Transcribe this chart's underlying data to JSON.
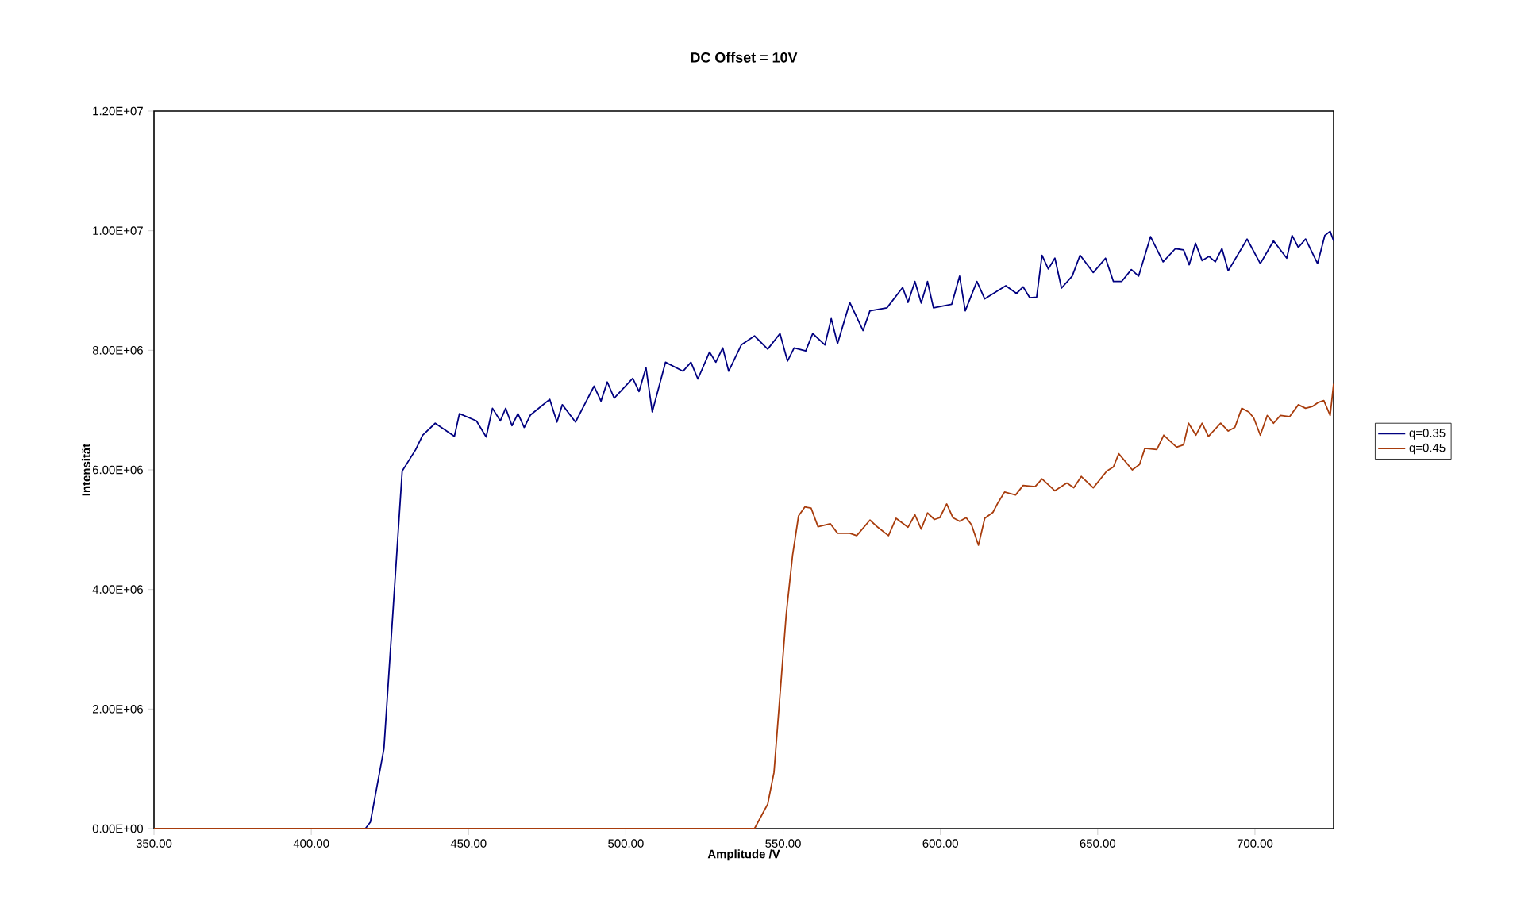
{
  "chart_data": {
    "type": "line",
    "title": "DC Offset = 10V",
    "xlabel": "Amplitude /V",
    "ylabel": "Intensität",
    "xlim": [
      350,
      725
    ],
    "ylim": [
      0,
      12000000
    ],
    "xticks": [
      {
        "value": 350,
        "label": "350.00"
      },
      {
        "value": 400,
        "label": "400.00"
      },
      {
        "value": 450,
        "label": "450.00"
      },
      {
        "value": 500,
        "label": "500.00"
      },
      {
        "value": 550,
        "label": "550.00"
      },
      {
        "value": 600,
        "label": "600.00"
      },
      {
        "value": 650,
        "label": "650.00"
      },
      {
        "value": 700,
        "label": "700.00"
      }
    ],
    "yticks": [
      {
        "value": 0,
        "label": "0.00E+00"
      },
      {
        "value": 2000000,
        "label": "2.00E+06"
      },
      {
        "value": 4000000,
        "label": "4.00E+06"
      },
      {
        "value": 6000000,
        "label": "6.00E+06"
      },
      {
        "value": 8000000,
        "label": "8.00E+06"
      },
      {
        "value": 10000000,
        "label": "1.00E+07"
      },
      {
        "value": 12000000,
        "label": "1.20E+07"
      }
    ],
    "grid": false,
    "legend": "right",
    "marker": "none",
    "line_style": "solid",
    "series": [
      {
        "name": "q=0.35",
        "color": "#000080",
        "x": [
          350,
          417.2,
          418.8,
          423.1,
          428.9,
          433.2,
          435.4,
          439.4,
          445.5,
          447.1,
          452.5,
          455.6,
          457.6,
          460.1,
          461.8,
          463.8,
          465.7,
          467.7,
          469.7,
          475.8,
          478.1,
          479.8,
          484.0,
          489.9,
          492.1,
          494.1,
          496.3,
          502.2,
          504.2,
          506.4,
          508.4,
          512.6,
          518.2,
          520.7,
          522.9,
          526.6,
          528.6,
          530.8,
          532.7,
          536.7,
          540.9,
          545.1,
          549.0,
          551.4,
          553.5,
          557.2,
          559.4,
          563.3,
          565.3,
          567.3,
          571.2,
          575.4,
          577.6,
          583.0,
          588.0,
          589.7,
          591.9,
          593.9,
          595.9,
          597.8,
          603.6,
          606.1,
          607.9,
          611.6,
          614.1,
          620.8,
          624.2,
          626.3,
          628.4,
          630.6,
          632.3,
          634.3,
          636.4,
          638.5,
          641.9,
          644.4,
          648.6,
          652.5,
          655.0,
          657.6,
          660.7,
          663.0,
          666.8,
          670.8,
          674.7,
          677.3,
          679.1,
          681.1,
          683.2,
          685.4,
          687.4,
          689.5,
          691.5,
          697.5,
          701.7,
          705.9,
          710.1,
          711.8,
          713.8,
          716.1,
          719.9,
          722.2,
          723.9,
          725
        ],
        "values": [
          0,
          0,
          110000,
          1340000,
          5980000,
          6340000,
          6580000,
          6780000,
          6560000,
          6940000,
          6820000,
          6550000,
          7030000,
          6820000,
          7030000,
          6740000,
          6940000,
          6710000,
          6920000,
          7180000,
          6800000,
          7090000,
          6800000,
          7400000,
          7150000,
          7470000,
          7200000,
          7530000,
          7310000,
          7710000,
          6970000,
          7800000,
          7650000,
          7800000,
          7520000,
          7970000,
          7800000,
          8040000,
          7650000,
          8090000,
          8240000,
          8020000,
          8280000,
          7820000,
          8040000,
          7990000,
          8280000,
          8090000,
          8530000,
          8110000,
          8800000,
          8330000,
          8660000,
          8710000,
          9050000,
          8800000,
          9150000,
          8790000,
          9150000,
          8710000,
          8770000,
          9240000,
          8660000,
          9150000,
          8860000,
          9080000,
          8950000,
          9060000,
          8880000,
          8890000,
          9590000,
          9360000,
          9540000,
          9040000,
          9240000,
          9590000,
          9300000,
          9540000,
          9150000,
          9150000,
          9350000,
          9240000,
          9900000,
          9480000,
          9700000,
          9680000,
          9430000,
          9790000,
          9500000,
          9570000,
          9480000,
          9700000,
          9330000,
          9860000,
          9450000,
          9830000,
          9540000,
          9920000,
          9720000,
          9860000,
          9450000,
          9920000,
          9990000,
          9830000
        ]
      },
      {
        "name": "q=0.45",
        "color": "#a83c0c",
        "x": [
          350,
          540.9,
          545.1,
          547.1,
          551.0,
          553.0,
          554.9,
          556.9,
          558.9,
          561.1,
          565.0,
          567.3,
          571.2,
          573.4,
          577.6,
          580.1,
          583.5,
          585.9,
          589.7,
          591.9,
          593.9,
          595.9,
          598.1,
          599.8,
          602.0,
          604.0,
          606.1,
          608.2,
          609.9,
          612.1,
          614.1,
          616.7,
          618.3,
          620.4,
          623.9,
          626.3,
          630.1,
          632.3,
          636.4,
          640.2,
          642.4,
          644.8,
          648.6,
          652.9,
          655.0,
          656.7,
          661.0,
          663.3,
          665.0,
          668.8,
          671.0,
          675.1,
          677.3,
          678.9,
          681.2,
          683.2,
          685.2,
          689.1,
          691.5,
          693.6,
          695.8,
          698.0,
          699.6,
          701.7,
          703.9,
          705.9,
          708.1,
          711.0,
          713.8,
          716.1,
          718.2,
          720.2,
          721.9,
          723.9,
          725
        ],
        "values": [
          0,
          0,
          410000,
          940000,
          3590000,
          4570000,
          5230000,
          5380000,
          5360000,
          5050000,
          5100000,
          4940000,
          4940000,
          4900000,
          5160000,
          5040000,
          4900000,
          5190000,
          5040000,
          5250000,
          5010000,
          5280000,
          5170000,
          5200000,
          5430000,
          5200000,
          5140000,
          5200000,
          5080000,
          4740000,
          5190000,
          5290000,
          5450000,
          5630000,
          5580000,
          5740000,
          5720000,
          5850000,
          5650000,
          5780000,
          5700000,
          5890000,
          5700000,
          5980000,
          6050000,
          6270000,
          6000000,
          6090000,
          6360000,
          6340000,
          6580000,
          6380000,
          6420000,
          6780000,
          6580000,
          6780000,
          6560000,
          6780000,
          6650000,
          6710000,
          7030000,
          6970000,
          6870000,
          6580000,
          6910000,
          6780000,
          6910000,
          6890000,
          7090000,
          7030000,
          7060000,
          7130000,
          7160000,
          6910000,
          7440000
        ]
      }
    ]
  }
}
